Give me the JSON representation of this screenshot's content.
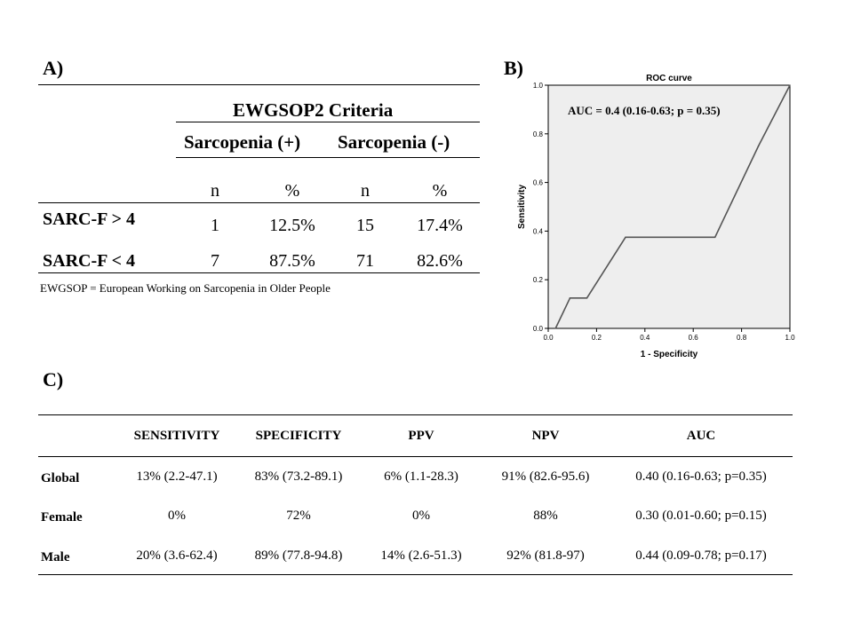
{
  "panel_labels": {
    "a": "A)",
    "b": "B)",
    "c": "C)"
  },
  "table_a": {
    "criteria_header": "EWGSOP2 Criteria",
    "group_pos": "Sarcopenia (+)",
    "group_neg": "Sarcopenia (-)",
    "col_n": "n",
    "col_pct": "%",
    "rows": [
      {
        "label": "SARC-F > 4",
        "n_pos": "1",
        "pct_pos": "12.5%",
        "n_neg": "15",
        "pct_neg": "17.4%"
      },
      {
        "label": "SARC-F < 4",
        "n_pos": "7",
        "pct_pos": "87.5%",
        "n_neg": "71",
        "pct_neg": "82.6%"
      }
    ],
    "footnote": "EWGSOP = European Working on Sarcopenia in Older People"
  },
  "chart_data": {
    "type": "line",
    "title": "ROC curve",
    "xlabel": "1 - Specificity",
    "ylabel": "Sensitivity",
    "annotation": "AUC = 0.4 (0.16-0.63; p = 0.35)",
    "xlim": [
      0,
      1
    ],
    "ylim": [
      0,
      1
    ],
    "x_ticks": [
      "0.0",
      "0.2",
      "0.4",
      "0.6",
      "0.8",
      "1.0"
    ],
    "y_ticks": [
      "0.0",
      "0.2",
      "0.4",
      "0.6",
      "0.8",
      "1.0"
    ],
    "x": [
      0.03,
      0.09,
      0.16,
      0.32,
      0.69,
      0.87,
      1.0
    ],
    "y": [
      0.0,
      0.125,
      0.125,
      0.375,
      0.375,
      0.75,
      1.0
    ],
    "fill_color": "#eeeeee",
    "line_color": "#555555"
  },
  "table_c": {
    "headers": [
      "",
      "SENSITIVITY",
      "SPECIFICITY",
      "PPV",
      "NPV",
      "AUC"
    ],
    "rows": [
      {
        "label": "Global",
        "cells": [
          "13% (2.2-47.1)",
          "83% (73.2-89.1)",
          "6% (1.1-28.3)",
          "91% (82.6-95.6)",
          "0.40 (0.16-0.63; p=0.35)"
        ]
      },
      {
        "label": "Female",
        "cells": [
          "0%",
          "72%",
          "0%",
          "88%",
          "0.30 (0.01-0.60; p=0.15)"
        ]
      },
      {
        "label": "Male",
        "cells": [
          "20% (3.6-62.4)",
          "89% (77.8-94.8)",
          "14% (2.6-51.3)",
          "92% (81.8-97)",
          "0.44 (0.09-0.78; p=0.17)"
        ]
      }
    ]
  }
}
